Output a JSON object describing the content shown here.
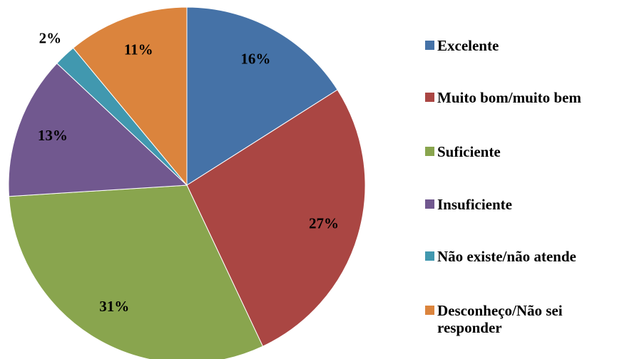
{
  "chart_data": {
    "type": "pie",
    "categories": [
      "Excelente",
      "Muito bom/muito bem",
      "Suficiente",
      "Insuficiente",
      "Não existe/não atende",
      "Desconheço/Não sei responder"
    ],
    "values": [
      16,
      27,
      31,
      13,
      2,
      11
    ],
    "value_labels": [
      "16%",
      "27%",
      "31%",
      "13%",
      "2%",
      "11%"
    ],
    "colors": [
      "#4572a7",
      "#aa4643",
      "#89a54e",
      "#71588f",
      "#4198af",
      "#db843d"
    ],
    "legend": "right"
  }
}
